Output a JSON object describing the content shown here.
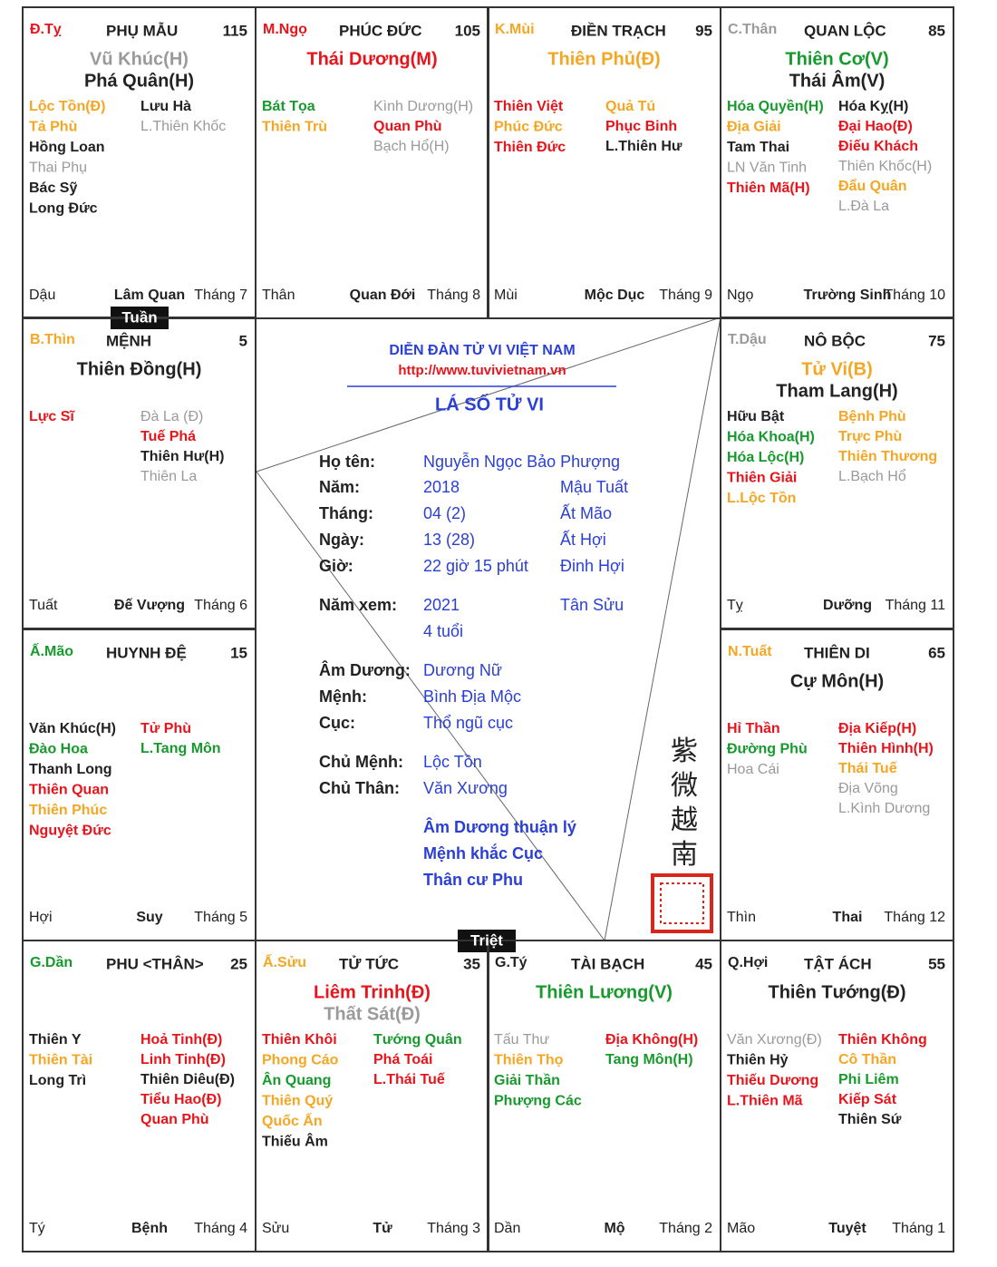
{
  "palaces": [
    {
      "code": {
        "text": "Đ.Tỵ",
        "color": "red"
      },
      "name": "PHỤ MẪU",
      "number": "115",
      "main": [
        {
          "text": "Vũ Khúc(H)",
          "color": "gray"
        },
        {
          "text": "Phá Quân(H)",
          "color": "black"
        }
      ],
      "left": [
        {
          "text": "Lộc Tồn(Đ)",
          "color": "orange"
        },
        {
          "text": "Tả Phù",
          "color": "orange"
        },
        {
          "text": "Hồng Loan",
          "color": "black"
        },
        {
          "text": "Thai Phụ",
          "color": "gray"
        },
        {
          "text": "Bác Sỹ",
          "color": "black"
        },
        {
          "text": "Long Đức",
          "color": "black"
        }
      ],
      "right": [
        {
          "text": "Lưu Hà",
          "color": "black"
        },
        {
          "text": "L.Thiên Khốc",
          "color": "gray"
        }
      ],
      "branch": "Dậu",
      "stage": "Lâm Quan",
      "month": "Tháng 7"
    },
    {
      "code": {
        "text": "M.Ngọ",
        "color": "red"
      },
      "name": "PHÚC ĐỨC",
      "number": "105",
      "main": [
        {
          "text": "Thái Dương(M)",
          "color": "red"
        }
      ],
      "left": [
        {
          "text": "Bát Tọa",
          "color": "green"
        },
        {
          "text": "Thiên Trù",
          "color": "orange"
        }
      ],
      "right": [
        {
          "text": "Kình Dương(H)",
          "color": "gray"
        },
        {
          "text": "Quan Phù",
          "color": "red"
        },
        {
          "text": "Bạch Hổ(H)",
          "color": "gray"
        }
      ],
      "branch": "Thân",
      "stage": "Quan Đới",
      "month": "Tháng 8"
    },
    {
      "code": {
        "text": "K.Mùi",
        "color": "orange"
      },
      "name": "ĐIỀN TRẠCH",
      "number": "95",
      "main": [
        {
          "text": "Thiên Phủ(Đ)",
          "color": "orange"
        }
      ],
      "left": [
        {
          "text": "Thiên Việt",
          "color": "red"
        },
        {
          "text": "Phúc Đức",
          "color": "orange"
        },
        {
          "text": "Thiên Đức",
          "color": "red"
        }
      ],
      "right": [
        {
          "text": "Quả Tú",
          "color": "orange"
        },
        {
          "text": "Phục Binh",
          "color": "red"
        },
        {
          "text": "L.Thiên Hư",
          "color": "black"
        }
      ],
      "branch": "Mùi",
      "stage": "Mộc Dục",
      "month": "Tháng 9"
    },
    {
      "code": {
        "text": "C.Thân",
        "color": "gray"
      },
      "name": "QUAN LỘC",
      "number": "85",
      "main": [
        {
          "text": "Thiên Cơ(V)",
          "color": "green"
        },
        {
          "text": "Thái Âm(V)",
          "color": "black"
        }
      ],
      "left": [
        {
          "text": "Hóa Quyền(H)",
          "color": "green"
        },
        {
          "text": "Địa Giải",
          "color": "orange"
        },
        {
          "text": "Tam Thai",
          "color": "black"
        },
        {
          "text": "LN Văn Tinh",
          "color": "gray"
        },
        {
          "text": "Thiên Mã(H)",
          "color": "red"
        }
      ],
      "right": [
        {
          "text": "Hóa Kỵ(H)",
          "color": "black"
        },
        {
          "text": "Đại Hao(Đ)",
          "color": "red"
        },
        {
          "text": "Điếu Khách",
          "color": "red"
        },
        {
          "text": "Thiên Khốc(H)",
          "color": "gray"
        },
        {
          "text": "Đẩu Quân",
          "color": "orange"
        },
        {
          "text": "L.Đà La",
          "color": "gray"
        }
      ],
      "branch": "Ngọ",
      "stage": "Trường Sinh",
      "month": "Tháng 10"
    },
    {
      "code": {
        "text": "B.Thìn",
        "color": "orange"
      },
      "name": "MỆNH",
      "number": "5",
      "main": [
        {
          "text": "Thiên Đồng(H)",
          "color": "black"
        }
      ],
      "left": [
        {
          "text": "Lực Sĩ",
          "color": "red"
        }
      ],
      "right": [
        {
          "text": "Đà La (Đ)",
          "color": "gray"
        },
        {
          "text": "Tuế Phá",
          "color": "red"
        },
        {
          "text": "Thiên Hư(H)",
          "color": "black"
        },
        {
          "text": "Thiên La",
          "color": "gray"
        }
      ],
      "branch": "Tuất",
      "stage": "Đế Vượng",
      "month": "Tháng 6"
    },
    {
      "code": {
        "text": "T.Dậu",
        "color": "gray"
      },
      "name": "NÔ BỘC",
      "number": "75",
      "main": [
        {
          "text": "Tử Vi(B)",
          "color": "orange"
        },
        {
          "text": "Tham Lang(H)",
          "color": "black"
        }
      ],
      "left": [
        {
          "text": "Hữu Bật",
          "color": "black"
        },
        {
          "text": "Hóa Khoa(H)",
          "color": "green"
        },
        {
          "text": "Hóa Lộc(H)",
          "color": "green"
        },
        {
          "text": "Thiên Giải",
          "color": "red"
        },
        {
          "text": "L.Lộc Tồn",
          "color": "orange"
        }
      ],
      "right": [
        {
          "text": "Bệnh Phù",
          "color": "orange"
        },
        {
          "text": "Trực Phù",
          "color": "orange"
        },
        {
          "text": "Thiên Thương",
          "color": "orange"
        },
        {
          "text": "L.Bạch Hổ",
          "color": "gray"
        }
      ],
      "branch": "Tỵ",
      "stage": "Dưỡng",
      "month": "Tháng 11"
    },
    {
      "code": {
        "text": "Ấ.Mão",
        "color": "green"
      },
      "name": "HUYNH ĐỆ",
      "number": "15",
      "main": [],
      "left": [
        {
          "text": "Văn Khúc(H)",
          "color": "black"
        },
        {
          "text": "Đào Hoa",
          "color": "green"
        },
        {
          "text": "Thanh Long",
          "color": "black"
        },
        {
          "text": "Thiên Quan",
          "color": "red"
        },
        {
          "text": "Thiên Phúc",
          "color": "orange"
        },
        {
          "text": "Nguyệt Đức",
          "color": "red"
        }
      ],
      "right": [
        {
          "text": "Tử Phù",
          "color": "red"
        },
        {
          "text": "L.Tang Môn",
          "color": "green"
        }
      ],
      "branch": "Hợi",
      "stage": "Suy",
      "month": "Tháng 5"
    },
    {
      "code": {
        "text": "N.Tuất",
        "color": "orange"
      },
      "name": "THIÊN DI",
      "number": "65",
      "main": [
        {
          "text": "Cự Môn(H)",
          "color": "black"
        }
      ],
      "left": [
        {
          "text": "Hỉ Thần",
          "color": "red"
        },
        {
          "text": "Đường Phù",
          "color": "green"
        },
        {
          "text": "Hoa Cái",
          "color": "gray"
        }
      ],
      "right": [
        {
          "text": "Địa Kiếp(H)",
          "color": "red"
        },
        {
          "text": "Thiên Hình(H)",
          "color": "red"
        },
        {
          "text": "Thái Tuế",
          "color": "orange"
        },
        {
          "text": "Địa Võng",
          "color": "gray"
        },
        {
          "text": "L.Kình Dương",
          "color": "gray"
        }
      ],
      "branch": "Thìn",
      "stage": "Thai",
      "month": "Tháng 12"
    },
    {
      "code": {
        "text": "G.Dần",
        "color": "green"
      },
      "name": "PHU <THÂN>",
      "number": "25",
      "main": [],
      "left": [
        {
          "text": "Thiên Y",
          "color": "black"
        },
        {
          "text": "Thiên Tài",
          "color": "orange"
        },
        {
          "text": "Long Trì",
          "color": "black"
        }
      ],
      "right": [
        {
          "text": "Hoả Tinh(Đ)",
          "color": "red"
        },
        {
          "text": "Linh Tinh(Đ)",
          "color": "red"
        },
        {
          "text": "Thiên Diêu(Đ)",
          "color": "black"
        },
        {
          "text": "Tiểu Hao(Đ)",
          "color": "red"
        },
        {
          "text": "Quan Phù",
          "color": "red"
        }
      ],
      "branch": "Tý",
      "stage": "Bệnh",
      "month": "Tháng 4"
    },
    {
      "code": {
        "text": "Ấ.Sửu",
        "color": "orange"
      },
      "name": "TỬ TỨC",
      "number": "35",
      "main": [
        {
          "text": "Liêm Trinh(Đ)",
          "color": "red"
        },
        {
          "text": "Thất Sát(Đ)",
          "color": "gray"
        }
      ],
      "left": [
        {
          "text": "Thiên Khôi",
          "color": "red"
        },
        {
          "text": "Phong Cáo",
          "color": "orange"
        },
        {
          "text": "Ân Quang",
          "color": "green"
        },
        {
          "text": "Thiên Quý",
          "color": "orange"
        },
        {
          "text": "Quốc Ấn",
          "color": "orange"
        },
        {
          "text": "Thiếu Âm",
          "color": "black"
        }
      ],
      "right": [
        {
          "text": "Tướng Quân",
          "color": "green"
        },
        {
          "text": "Phá Toái",
          "color": "red"
        },
        {
          "text": "L.Thái Tuế",
          "color": "red"
        }
      ],
      "branch": "Sửu",
      "stage": "Tử",
      "month": "Tháng 3"
    },
    {
      "code": {
        "text": "G.Tý",
        "color": "black"
      },
      "name": "TÀI BẠCH",
      "number": "45",
      "main": [
        {
          "text": "Thiên Lương(V)",
          "color": "green"
        }
      ],
      "left": [
        {
          "text": "Tấu Thư",
          "color": "gray"
        },
        {
          "text": "Thiên Thọ",
          "color": "orange"
        },
        {
          "text": "Giải Thần",
          "color": "green"
        },
        {
          "text": "Phượng Các",
          "color": "green"
        }
      ],
      "right": [
        {
          "text": "Địa Không(H)",
          "color": "red"
        },
        {
          "text": "Tang Môn(H)",
          "color": "green"
        }
      ],
      "branch": "Dần",
      "stage": "Mộ",
      "month": "Tháng 2"
    },
    {
      "code": {
        "text": "Q.Hợi",
        "color": "black"
      },
      "name": "TẬT ÁCH",
      "number": "55",
      "main": [
        {
          "text": "Thiên Tướng(Đ)",
          "color": "black"
        }
      ],
      "left": [
        {
          "text": "Văn Xương(Đ)",
          "color": "gray"
        },
        {
          "text": "Thiên Hỷ",
          "color": "black"
        },
        {
          "text": "Thiếu Dương",
          "color": "red"
        },
        {
          "text": "L.Thiên Mã",
          "color": "red"
        }
      ],
      "right": [
        {
          "text": "Thiên Không",
          "color": "red"
        },
        {
          "text": "Cô Thần",
          "color": "orange"
        },
        {
          "text": "Phi Liêm",
          "color": "green"
        },
        {
          "text": "Kiếp Sát",
          "color": "red"
        },
        {
          "text": "Thiên Sứ",
          "color": "black"
        }
      ],
      "branch": "Mão",
      "stage": "Tuyệt",
      "month": "Tháng 1"
    }
  ],
  "center": {
    "forum": "DIỄN ĐÀN TỬ VI VIỆT NAM",
    "url": "http://www.tuvivietnam.vn",
    "title": "LÁ SỐ TỬ VI",
    "info": [
      {
        "label": "Họ tên:",
        "value": "Nguyễn Ngọc Bảo Phượng"
      },
      {
        "label": "Năm:",
        "value": "2018",
        "extra": "Mậu Tuất"
      },
      {
        "label": "Tháng:",
        "value": "04 (2)",
        "extra": "Ất Mão"
      },
      {
        "label": "Ngày:",
        "value": "13 (28)",
        "extra": "Ất Hợi"
      },
      {
        "label": "Giờ:",
        "value": "22 giờ 15 phút",
        "extra": "Đinh Hợi"
      },
      {
        "label": "Năm xem:",
        "value": "2021",
        "extra": "Tân Sửu"
      },
      {
        "value": "4 tuổi"
      },
      {
        "label": "Âm Dương:",
        "value": "Dương Nữ"
      },
      {
        "label": "Mệnh:",
        "value": "Bình Địa Mộc"
      },
      {
        "label": "Cục:",
        "value": "Thổ ngũ cục"
      },
      {
        "label": "Chủ Mệnh:",
        "value": "Lộc Tồn"
      },
      {
        "label": "Chủ Thân:",
        "value": "Văn Xương"
      }
    ],
    "notes": [
      "Âm Dương thuận lý",
      "Mệnh khắc Cục",
      "Thân cư Phu"
    ],
    "seal_chars": [
      "紫",
      "微",
      "越",
      "南"
    ]
  },
  "markers": {
    "tuan": "Tuần",
    "triet": "Triệt"
  }
}
